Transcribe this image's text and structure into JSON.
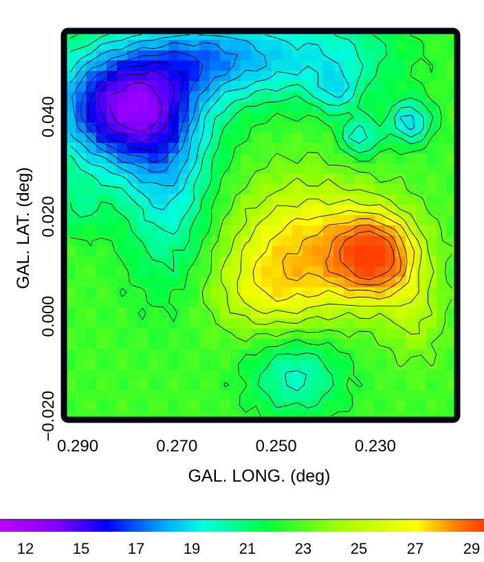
{
  "chart_data": {
    "type": "heatmap",
    "subtype": "contour-map",
    "title": "",
    "xlabel": "GAL. LONG. (deg)",
    "ylabel": "GAL. LAT. (deg)",
    "x_ticks": [
      "0.290",
      "0.270",
      "0.250",
      "0.230"
    ],
    "y_ticks": [
      "−0.020",
      "0.000",
      "0.020",
      "0.040"
    ],
    "xlim": [
      0.2925,
      0.2135
    ],
    "ylim": [
      -0.021,
      0.0575
    ],
    "x_reversed": true,
    "colorbar": {
      "orientation": "horizontal",
      "position": "bottom",
      "tick_labels": [
        "12",
        "15",
        "17",
        "19",
        "21",
        "23",
        "25",
        "27",
        "29"
      ],
      "range": [
        10,
        30
      ],
      "colors": [
        "#c000ff",
        "#8000ff",
        "#0000ff",
        "#00aaff",
        "#00ffdd",
        "#00ff40",
        "#a0ff00",
        "#ffff00",
        "#ff8000",
        "#ff4000"
      ]
    },
    "features": [
      {
        "type": "minimum",
        "lon": 0.281,
        "lat": 0.042,
        "value": 12
      },
      {
        "type": "maximum",
        "lon": 0.23,
        "lat": 0.012,
        "value": 29
      },
      {
        "type": "maximum",
        "lon": 0.246,
        "lat": 0.02,
        "value": 26
      },
      {
        "type": "minimum",
        "lon": 0.246,
        "lat": -0.012,
        "value": 19.5
      },
      {
        "type": "minimum",
        "lon": 0.223,
        "lat": 0.039,
        "value": 18
      }
    ]
  }
}
